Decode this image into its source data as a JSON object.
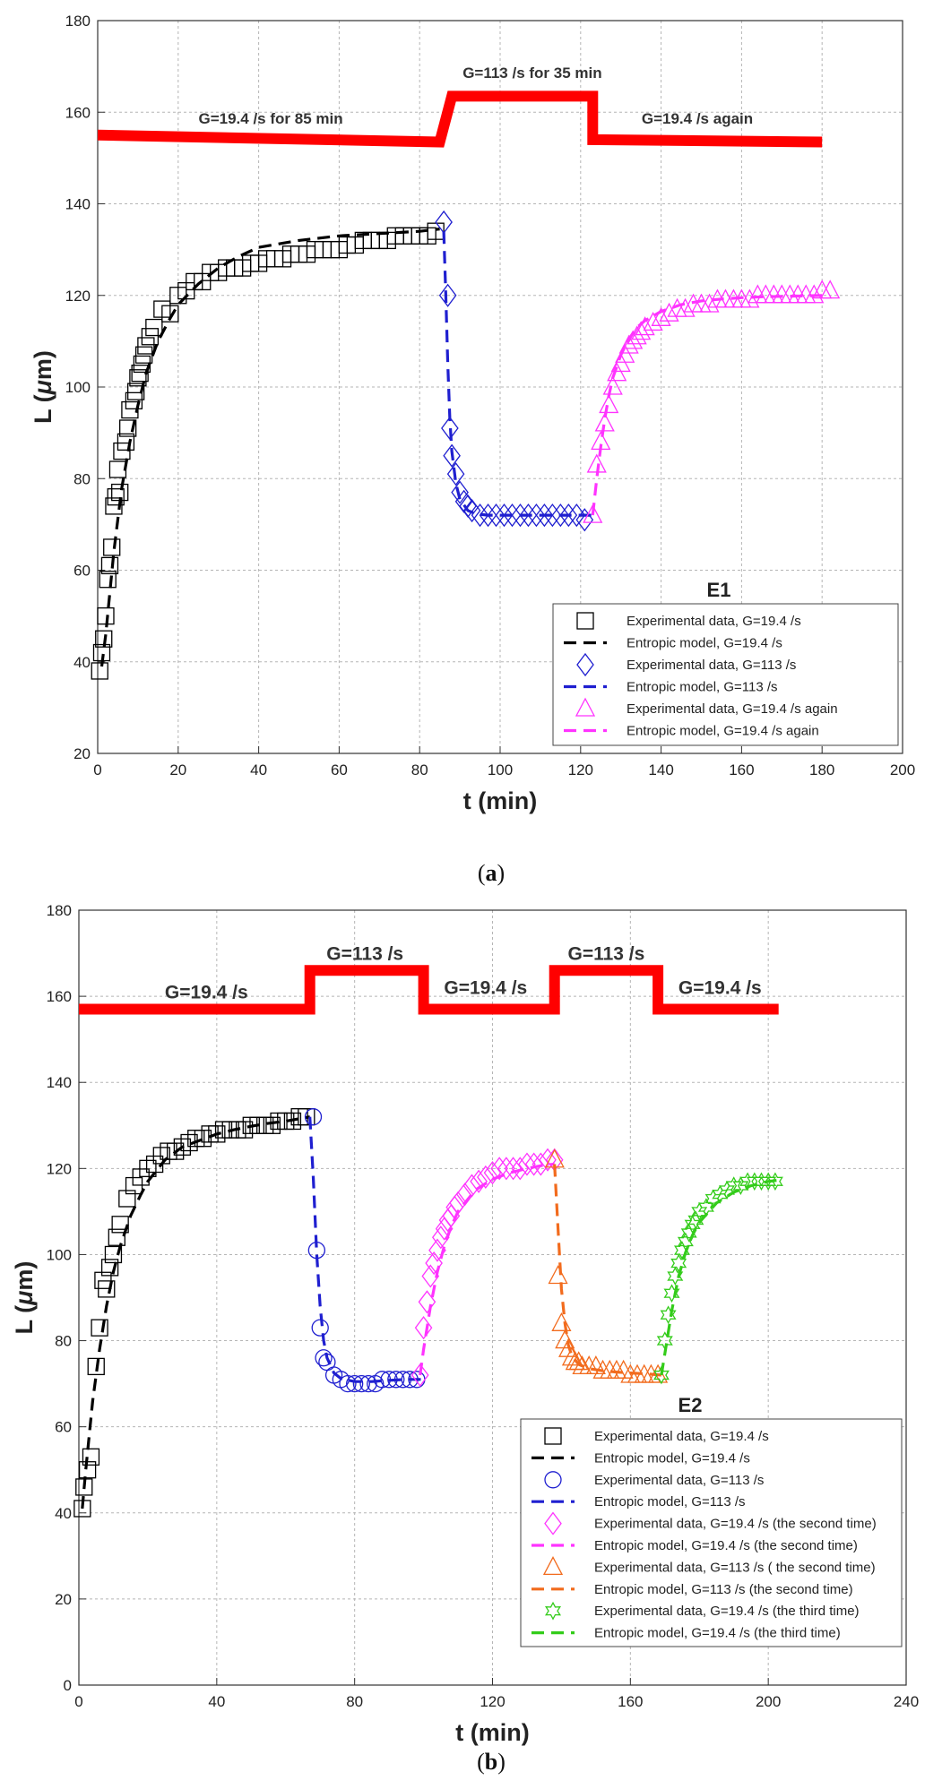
{
  "colors": {
    "black": "#000000",
    "blue": "#1f1fd0",
    "magenta": "#ff33ff",
    "orange": "#f26b1d",
    "green": "#33cc1a",
    "step": "#ff0000",
    "grid": "#b5b5b5"
  },
  "chart_data": [
    {
      "id": "a",
      "type": "scatter",
      "caption": {
        "open": "(",
        "letter": "a",
        "close": ")"
      },
      "title": "E1",
      "xlabel": "t (min)",
      "ylabel_parts": [
        "L (",
        "μ",
        "m)"
      ],
      "xlim": [
        0,
        200
      ],
      "ylim": [
        20,
        180
      ],
      "xticks": [
        0,
        20,
        40,
        60,
        80,
        100,
        120,
        140,
        160,
        180,
        200
      ],
      "yticks": [
        20,
        40,
        60,
        80,
        100,
        120,
        140,
        160,
        180
      ],
      "step_line": {
        "x": [
          0,
          85,
          85,
          88,
          88,
          123,
          123,
          180
        ],
        "y": [
          155,
          153.5,
          153.5,
          163.5,
          163.5,
          163.5,
          154,
          153.5
        ]
      },
      "annotations": [
        {
          "text": "G=19.4 /s for 85 min",
          "x": 43,
          "y": 157.5,
          "size": 17
        },
        {
          "text": "G=113 /s for 35 min",
          "x": 108,
          "y": 167.5,
          "size": 17
        },
        {
          "text": "G=19.4 /s again",
          "x": 149,
          "y": 157.5,
          "size": 17
        }
      ],
      "series": [
        {
          "name": "Experimental data, G=19.4 /s",
          "kind": "points",
          "marker": "square",
          "color": "#000000",
          "x": [
            0.5,
            1,
            1.5,
            2,
            2.5,
            3,
            3.5,
            4,
            4.5,
            5,
            5.5,
            6,
            7,
            7.5,
            8,
            9,
            9.5,
            10,
            10.5,
            11,
            11.5,
            12,
            13,
            14,
            16,
            18,
            20,
            22,
            24,
            26,
            28,
            30,
            32,
            34,
            36,
            38,
            40,
            42,
            44,
            46,
            48,
            50,
            52,
            54,
            56,
            58,
            60,
            62,
            64,
            66,
            68,
            70,
            72,
            74,
            76,
            78,
            80,
            82,
            84
          ],
          "y": [
            38,
            42,
            45,
            50,
            58,
            61,
            65,
            74,
            76,
            82,
            77,
            86,
            88,
            91,
            95,
            97,
            99,
            102,
            103,
            105,
            107,
            109,
            111,
            113,
            117,
            116,
            120,
            121,
            123,
            123,
            125,
            125,
            126,
            126,
            126,
            127,
            127,
            128,
            128,
            128,
            129,
            129,
            129,
            130,
            130,
            130,
            130,
            131,
            131,
            132,
            132,
            132,
            132,
            133,
            133,
            133,
            133,
            133,
            134
          ]
        },
        {
          "name": "Entropic model, G=19.4 /s",
          "kind": "line",
          "color": "#000000",
          "x": [
            1,
            2,
            3,
            4,
            5,
            6,
            8,
            10,
            12,
            15,
            18,
            20,
            25,
            30,
            35,
            40,
            50,
            60,
            70,
            80,
            85
          ],
          "y": [
            39,
            46,
            55,
            64,
            71,
            78,
            88,
            96,
            103,
            110,
            115,
            118,
            122.5,
            126,
            128.5,
            130.5,
            132,
            133,
            133.5,
            134,
            134.5
          ]
        },
        {
          "name": "Experimental data, G=113 /s",
          "kind": "points",
          "marker": "diamond",
          "color": "#1f1fd0",
          "x": [
            86,
            87,
            87.5,
            88,
            89,
            90,
            91,
            92,
            93,
            95,
            97,
            99,
            101,
            103,
            105,
            107,
            109,
            111,
            113,
            115,
            117,
            119,
            121
          ],
          "y": [
            136,
            120,
            91,
            85,
            81,
            77,
            75,
            74,
            73,
            72,
            72,
            72,
            72,
            72,
            72,
            72,
            72,
            72,
            72,
            72,
            72,
            72,
            71
          ]
        },
        {
          "name": "Entropic model, G=113 /s",
          "kind": "line",
          "color": "#1f1fd0",
          "x": [
            86,
            86.5,
            87,
            87.5,
            88,
            89,
            90,
            92,
            94,
            97,
            100,
            105,
            110,
            115,
            120,
            123
          ],
          "y": [
            134,
            120,
            105,
            93,
            86,
            79,
            75.5,
            73,
            72.3,
            72,
            72,
            72,
            72,
            72,
            72,
            72
          ]
        },
        {
          "name": "Experimental data, G=19.4 /s again",
          "kind": "points",
          "marker": "triangle",
          "color": "#ff33ff",
          "x": [
            123,
            124,
            125,
            126,
            127,
            128,
            129,
            130,
            131,
            132,
            133,
            134,
            135,
            136,
            138,
            140,
            142,
            144,
            146,
            148,
            150,
            152,
            154,
            156,
            158,
            160,
            162,
            164,
            166,
            168,
            170,
            172,
            174,
            176,
            178,
            180,
            182
          ],
          "y": [
            72,
            83,
            88,
            92,
            96,
            100,
            103,
            105,
            107,
            109,
            110,
            111,
            112,
            113,
            114,
            115,
            116,
            117,
            117,
            118,
            118,
            118,
            119,
            119,
            119,
            119,
            119,
            120,
            120,
            120,
            120,
            120,
            120,
            120,
            120,
            121,
            121
          ]
        },
        {
          "name": "Entropic model, G=19.4 /s again",
          "kind": "line",
          "color": "#ff33ff",
          "x": [
            123,
            124,
            125,
            126,
            127,
            128,
            130,
            132,
            134,
            136,
            138,
            140,
            145,
            150,
            155,
            160,
            165,
            170,
            175,
            180
          ],
          "y": [
            72,
            80,
            87,
            93,
            98,
            102,
            107,
            110.5,
            113,
            114.5,
            115.5,
            116.5,
            118,
            118.8,
            119.2,
            119.5,
            119.7,
            119.8,
            119.9,
            120
          ]
        }
      ]
    },
    {
      "id": "b",
      "type": "scatter",
      "caption": {
        "open": "(",
        "letter": "b",
        "close": ")"
      },
      "title": "E2",
      "xlabel": "t (min)",
      "ylabel_parts": [
        "L (",
        "μ",
        "m)"
      ],
      "xlim": [
        0,
        240
      ],
      "ylim": [
        0,
        180
      ],
      "xticks": [
        0,
        40,
        80,
        120,
        160,
        200,
        240
      ],
      "yticks": [
        0,
        20,
        40,
        60,
        80,
        100,
        120,
        140,
        160,
        180
      ],
      "step_line": {
        "x": [
          0,
          67,
          67,
          100,
          100,
          138,
          138,
          168,
          168,
          203
        ],
        "y": [
          157,
          157,
          166,
          166,
          157,
          157,
          166,
          166,
          157,
          157
        ]
      },
      "annotations": [
        {
          "text": "G=19.4 /s",
          "x": 37,
          "y": 159.5,
          "size": 21
        },
        {
          "text": "G=113 /s",
          "x": 83,
          "y": 168.5,
          "size": 21
        },
        {
          "text": "G=19.4 /s",
          "x": 118,
          "y": 160.5,
          "size": 21
        },
        {
          "text": "G=113 /s",
          "x": 153,
          "y": 168.5,
          "size": 21
        },
        {
          "text": "G=19.4 /s",
          "x": 186,
          "y": 160.5,
          "size": 21
        }
      ],
      "series": [
        {
          "name": "Experimental data, G=19.4 /s",
          "kind": "points",
          "marker": "square",
          "color": "#000000",
          "x": [
            1,
            1.5,
            2.5,
            3.5,
            5,
            6,
            7,
            8,
            9,
            10,
            11,
            12,
            14,
            16,
            18,
            20,
            22,
            24,
            26,
            28,
            30,
            32,
            34,
            36,
            38,
            40,
            42,
            44,
            46,
            48,
            50,
            52,
            54,
            56,
            58,
            60,
            62,
            64,
            66
          ],
          "y": [
            41,
            46,
            50,
            53,
            74,
            83,
            94,
            92,
            97,
            100,
            104,
            107,
            113,
            116,
            118,
            120,
            121,
            123,
            124,
            124,
            125,
            126,
            127,
            127,
            128,
            128,
            129,
            129,
            129,
            129,
            130,
            130,
            130,
            130,
            131,
            131,
            131,
            132,
            132
          ]
        },
        {
          "name": "Entropic model, G=19.4 /s",
          "kind": "line",
          "color": "#000000",
          "x": [
            1,
            2,
            4,
            6,
            8,
            10,
            12,
            15,
            18,
            20,
            25,
            30,
            35,
            40,
            45,
            50,
            55,
            60,
            67
          ],
          "y": [
            41,
            50,
            66,
            78,
            88,
            96,
            102,
            109,
            114,
            117,
            122,
            125,
            126.5,
            128,
            129,
            129.8,
            130.5,
            131,
            132
          ]
        },
        {
          "name": "Experimental data, G=113 /s",
          "kind": "points",
          "marker": "circle",
          "color": "#1f1fd0",
          "x": [
            68,
            69,
            70,
            71,
            72,
            74,
            76,
            78,
            80,
            82,
            84,
            86,
            88,
            90,
            92,
            94,
            96,
            98
          ],
          "y": [
            132,
            101,
            83,
            76,
            75,
            72,
            71,
            70,
            70,
            70,
            70,
            70,
            71,
            71,
            71,
            71,
            71,
            71
          ]
        },
        {
          "name": "Entropic model, G=113 /s",
          "kind": "line",
          "color": "#1f1fd0",
          "x": [
            67,
            68,
            69,
            70,
            71,
            72,
            74,
            76,
            80,
            85,
            90,
            95,
            100
          ],
          "y": [
            132,
            118,
            100,
            88,
            80,
            76,
            72.5,
            71.2,
            70.5,
            70.5,
            70.8,
            71,
            71
          ]
        },
        {
          "name": "Experimental data, G=19.4 /s  (the second time)",
          "kind": "points",
          "marker": "diamond",
          "color": "#ff33ff",
          "x": [
            99,
            100,
            101,
            102,
            103,
            104,
            105,
            106,
            107,
            108,
            109,
            110,
            112,
            114,
            116,
            118,
            120,
            122,
            124,
            126,
            128,
            130,
            132,
            134,
            136,
            138
          ],
          "y": [
            72,
            83,
            89,
            95,
            98,
            101,
            104,
            106,
            108,
            109,
            111,
            112,
            114,
            116,
            117,
            118,
            119,
            120,
            120,
            120,
            120,
            121,
            121,
            121,
            122,
            122
          ]
        },
        {
          "name": "Entropic model, G=19.4 /s (the second time)",
          "kind": "line",
          "color": "#ff33ff",
          "x": [
            99,
            100,
            102,
            104,
            106,
            108,
            110,
            115,
            120,
            125,
            130,
            135,
            138
          ],
          "y": [
            72,
            78,
            88,
            96,
            102,
            106.5,
            110,
            115,
            117.5,
            119,
            120,
            120.8,
            121
          ]
        },
        {
          "name": "Experimental data, G=113 /s ( the second time)",
          "kind": "points",
          "marker": "triangle",
          "color": "#f26b1d",
          "x": [
            138,
            139,
            140,
            141,
            142,
            143,
            144,
            145,
            146,
            148,
            150,
            152,
            154,
            156,
            158,
            160,
            162,
            164,
            166,
            168
          ],
          "y": [
            122,
            95,
            84,
            80,
            78,
            76,
            75,
            75,
            74,
            74,
            74,
            73,
            73,
            73,
            73,
            72,
            72,
            72,
            72,
            72
          ]
        },
        {
          "name": "Entropic model, G=113 /s (the second time)",
          "kind": "line",
          "color": "#f26b1d",
          "x": [
            138,
            139,
            140,
            141,
            142,
            143,
            145,
            148,
            152,
            156,
            160,
            165,
            169
          ],
          "y": [
            121,
            106,
            92,
            84,
            79,
            76.5,
            74.5,
            73.5,
            73,
            72.7,
            72.5,
            72.3,
            72
          ]
        },
        {
          "name": "Experimental data, G=19.4 /s  (the third time)",
          "kind": "points",
          "marker": "hexagram",
          "color": "#33cc1a",
          "x": [
            169,
            170,
            171,
            172,
            173,
            174,
            175,
            176,
            177,
            178,
            179,
            180,
            182,
            184,
            186,
            188,
            190,
            192,
            194,
            196,
            198,
            200,
            202
          ],
          "y": [
            72,
            80,
            86,
            91,
            95,
            98,
            101,
            103,
            105,
            107,
            108,
            110,
            111,
            113,
            114,
            115,
            116,
            116,
            117,
            117,
            117,
            117,
            117
          ]
        },
        {
          "name": "Entropic model, G=19.4 /s (the third time)",
          "kind": "line",
          "color": "#33cc1a",
          "x": [
            169,
            170,
            172,
            174,
            176,
            178,
            180,
            185,
            190,
            195,
            200,
            203
          ],
          "y": [
            72,
            77,
            87,
            95,
            100.5,
            104.5,
            107.5,
            112,
            114.5,
            116,
            117,
            117.3
          ]
        }
      ]
    }
  ]
}
